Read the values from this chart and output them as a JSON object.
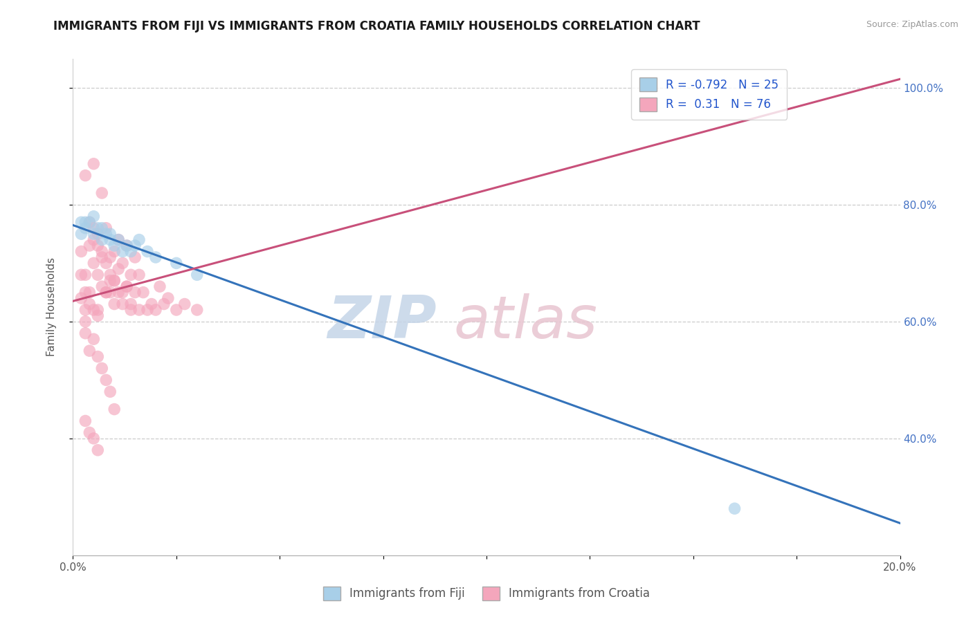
{
  "title": "IMMIGRANTS FROM FIJI VS IMMIGRANTS FROM CROATIA FAMILY HOUSEHOLDS CORRELATION CHART",
  "source": "Source: ZipAtlas.com",
  "ylabel": "Family Households",
  "xlim": [
    0.0,
    0.2
  ],
  "ylim": [
    0.2,
    1.05
  ],
  "xticks": [
    0.0,
    0.025,
    0.05,
    0.075,
    0.1,
    0.125,
    0.15,
    0.175,
    0.2
  ],
  "xticklabels": [
    "0.0%",
    "",
    "",
    "",
    "",
    "",
    "",
    "",
    "20.0%"
  ],
  "yticks_right": [
    0.4,
    0.6,
    0.8,
    1.0
  ],
  "yticklabels_right": [
    "40.0%",
    "60.0%",
    "80.0%",
    "100.0%"
  ],
  "fiji_R": -0.792,
  "fiji_N": 25,
  "croatia_R": 0.31,
  "croatia_N": 76,
  "fiji_color": "#a8cfe8",
  "croatia_color": "#f4a6bc",
  "fiji_line_color": "#3473ba",
  "croatia_line_color": "#c8507a",
  "fiji_line_x0": 0.0,
  "fiji_line_y0": 0.765,
  "fiji_line_x1": 0.2,
  "fiji_line_y1": 0.255,
  "croatia_line_x0": 0.0,
  "croatia_line_y0": 0.635,
  "croatia_line_x1": 0.2,
  "croatia_line_y1": 1.015,
  "fiji_scatter_x": [
    0.002,
    0.003,
    0.004,
    0.005,
    0.006,
    0.007,
    0.008,
    0.009,
    0.01,
    0.011,
    0.012,
    0.013,
    0.014,
    0.015,
    0.016,
    0.018,
    0.02,
    0.025,
    0.03,
    0.003,
    0.005,
    0.007,
    0.009,
    0.16,
    0.002
  ],
  "fiji_scatter_y": [
    0.75,
    0.76,
    0.77,
    0.75,
    0.76,
    0.74,
    0.75,
    0.74,
    0.73,
    0.74,
    0.72,
    0.73,
    0.72,
    0.73,
    0.74,
    0.72,
    0.71,
    0.7,
    0.68,
    0.77,
    0.78,
    0.76,
    0.75,
    0.28,
    0.77
  ],
  "croatia_scatter_x": [
    0.002,
    0.002,
    0.003,
    0.003,
    0.003,
    0.004,
    0.004,
    0.005,
    0.005,
    0.005,
    0.006,
    0.006,
    0.006,
    0.007,
    0.007,
    0.007,
    0.008,
    0.008,
    0.008,
    0.009,
    0.009,
    0.009,
    0.01,
    0.01,
    0.01,
    0.011,
    0.011,
    0.012,
    0.012,
    0.013,
    0.013,
    0.014,
    0.014,
    0.015,
    0.015,
    0.016,
    0.016,
    0.017,
    0.018,
    0.019,
    0.02,
    0.021,
    0.022,
    0.023,
    0.025,
    0.027,
    0.03,
    0.003,
    0.004,
    0.005,
    0.006,
    0.007,
    0.008,
    0.009,
    0.01,
    0.011,
    0.012,
    0.013,
    0.014,
    0.002,
    0.003,
    0.004,
    0.005,
    0.006,
    0.003,
    0.004,
    0.005,
    0.006,
    0.007,
    0.008,
    0.009,
    0.01,
    0.003,
    0.004,
    0.005,
    0.006
  ],
  "croatia_scatter_y": [
    0.68,
    0.72,
    0.65,
    0.68,
    0.85,
    0.73,
    0.77,
    0.74,
    0.76,
    0.87,
    0.68,
    0.73,
    0.75,
    0.66,
    0.71,
    0.82,
    0.65,
    0.7,
    0.76,
    0.65,
    0.71,
    0.68,
    0.67,
    0.72,
    0.67,
    0.69,
    0.74,
    0.65,
    0.7,
    0.66,
    0.73,
    0.63,
    0.68,
    0.65,
    0.71,
    0.62,
    0.68,
    0.65,
    0.62,
    0.63,
    0.62,
    0.66,
    0.63,
    0.64,
    0.62,
    0.63,
    0.62,
    0.62,
    0.65,
    0.7,
    0.62,
    0.72,
    0.65,
    0.67,
    0.63,
    0.65,
    0.63,
    0.66,
    0.62,
    0.64,
    0.6,
    0.63,
    0.62,
    0.61,
    0.58,
    0.55,
    0.57,
    0.54,
    0.52,
    0.5,
    0.48,
    0.45,
    0.43,
    0.41,
    0.4,
    0.38
  ],
  "watermark_zip": "ZIP",
  "watermark_atlas": "atlas",
  "background_color": "#ffffff",
  "grid_color": "#cccccc",
  "title_fontsize": 12,
  "axis_fontsize": 11,
  "tick_fontsize": 11,
  "legend_fontsize": 12
}
